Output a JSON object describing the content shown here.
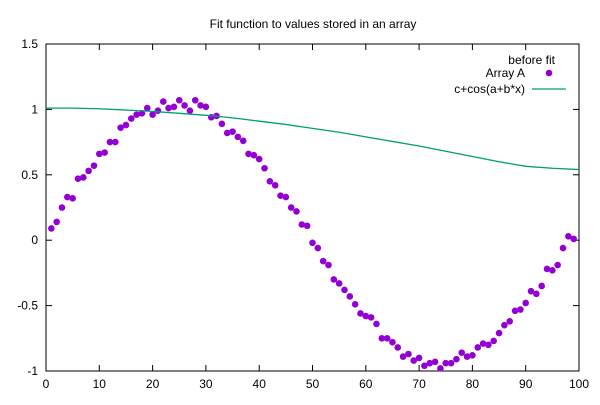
{
  "chart_data": {
    "type": "scatter",
    "title": "Fit function to values stored in an array",
    "xlabel": "",
    "ylabel": "",
    "xlim": [
      0,
      100
    ],
    "ylim": [
      -1,
      1.5
    ],
    "xticks": [
      "0",
      "10",
      "20",
      "30",
      "40",
      "50",
      "60",
      "70",
      "80",
      "90",
      "100"
    ],
    "yticks": [
      "-1",
      "-0.5",
      "0",
      "0.5",
      "1",
      "1.5"
    ],
    "grid": false,
    "legend_position": "top-right",
    "legend_title": "before fit",
    "series": [
      {
        "name": "Array A",
        "kind": "points",
        "color": "#9400d3",
        "points": [
          [
            1,
            0.09
          ],
          [
            2,
            0.14
          ],
          [
            3,
            0.25
          ],
          [
            4,
            0.33
          ],
          [
            5,
            0.32
          ],
          [
            6,
            0.47
          ],
          [
            7,
            0.48
          ],
          [
            8,
            0.53
          ],
          [
            9,
            0.57
          ],
          [
            10,
            0.66
          ],
          [
            11,
            0.67
          ],
          [
            12,
            0.75
          ],
          [
            13,
            0.75
          ],
          [
            14,
            0.86
          ],
          [
            15,
            0.88
          ],
          [
            16,
            0.93
          ],
          [
            17,
            0.96
          ],
          [
            18,
            0.97
          ],
          [
            19,
            1.01
          ],
          [
            20,
            0.96
          ],
          [
            21,
            0.99
          ],
          [
            22,
            1.06
          ],
          [
            23,
            1.01
          ],
          [
            24,
            1.02
          ],
          [
            25,
            1.07
          ],
          [
            26,
            1.03
          ],
          [
            27,
            0.99
          ],
          [
            28,
            1.07
          ],
          [
            29,
            1.03
          ],
          [
            30,
            1.02
          ],
          [
            31,
            0.94
          ],
          [
            32,
            0.95
          ],
          [
            33,
            0.89
          ],
          [
            34,
            0.82
          ],
          [
            35,
            0.83
          ],
          [
            36,
            0.79
          ],
          [
            37,
            0.76
          ],
          [
            38,
            0.66
          ],
          [
            39,
            0.65
          ],
          [
            40,
            0.62
          ],
          [
            41,
            0.55
          ],
          [
            42,
            0.45
          ],
          [
            43,
            0.42
          ],
          [
            44,
            0.34
          ],
          [
            45,
            0.33
          ],
          [
            46,
            0.25
          ],
          [
            47,
            0.22
          ],
          [
            48,
            0.12
          ],
          [
            49,
            0.11
          ],
          [
            50,
            -0.02
          ],
          [
            51,
            -0.06
          ],
          [
            52,
            -0.16
          ],
          [
            53,
            -0.19
          ],
          [
            54,
            -0.3
          ],
          [
            55,
            -0.33
          ],
          [
            56,
            -0.38
          ],
          [
            57,
            -0.43
          ],
          [
            58,
            -0.49
          ],
          [
            59,
            -0.56
          ],
          [
            60,
            -0.58
          ],
          [
            61,
            -0.59
          ],
          [
            62,
            -0.64
          ],
          [
            63,
            -0.75
          ],
          [
            64,
            -0.75
          ],
          [
            65,
            -0.78
          ],
          [
            66,
            -0.82
          ],
          [
            67,
            -0.89
          ],
          [
            68,
            -0.87
          ],
          [
            69,
            -0.92
          ],
          [
            70,
            -0.9
          ],
          [
            71,
            -0.96
          ],
          [
            72,
            -0.94
          ],
          [
            73,
            -0.93
          ],
          [
            74,
            -0.98
          ],
          [
            75,
            -0.94
          ],
          [
            76,
            -0.94
          ],
          [
            77,
            -0.91
          ],
          [
            78,
            -0.86
          ],
          [
            79,
            -0.89
          ],
          [
            80,
            -0.88
          ],
          [
            81,
            -0.82
          ],
          [
            82,
            -0.79
          ],
          [
            83,
            -0.8
          ],
          [
            84,
            -0.77
          ],
          [
            85,
            -0.71
          ],
          [
            86,
            -0.65
          ],
          [
            87,
            -0.62
          ],
          [
            88,
            -0.54
          ],
          [
            89,
            -0.53
          ],
          [
            90,
            -0.48
          ],
          [
            91,
            -0.39
          ],
          [
            92,
            -0.41
          ],
          [
            93,
            -0.35
          ],
          [
            94,
            -0.22
          ],
          [
            95,
            -0.23
          ],
          [
            96,
            -0.19
          ],
          [
            97,
            -0.06
          ],
          [
            98,
            0.03
          ],
          [
            99,
            0.01
          ]
        ]
      },
      {
        "name": "c+cos(a+b*x)",
        "kind": "line",
        "color": "#009e73",
        "points": [
          [
            0,
            1.01
          ],
          [
            5,
            1.01
          ],
          [
            10,
            1.005
          ],
          [
            15,
            0.995
          ],
          [
            20,
            0.985
          ],
          [
            25,
            0.97
          ],
          [
            30,
            0.955
          ],
          [
            35,
            0.935
          ],
          [
            40,
            0.91
          ],
          [
            45,
            0.885
          ],
          [
            50,
            0.855
          ],
          [
            55,
            0.825
          ],
          [
            60,
            0.79
          ],
          [
            65,
            0.755
          ],
          [
            70,
            0.72
          ],
          [
            75,
            0.68
          ],
          [
            80,
            0.64
          ],
          [
            85,
            0.6
          ],
          [
            90,
            0.565
          ],
          [
            95,
            0.55
          ],
          [
            100,
            0.54
          ]
        ]
      }
    ]
  }
}
